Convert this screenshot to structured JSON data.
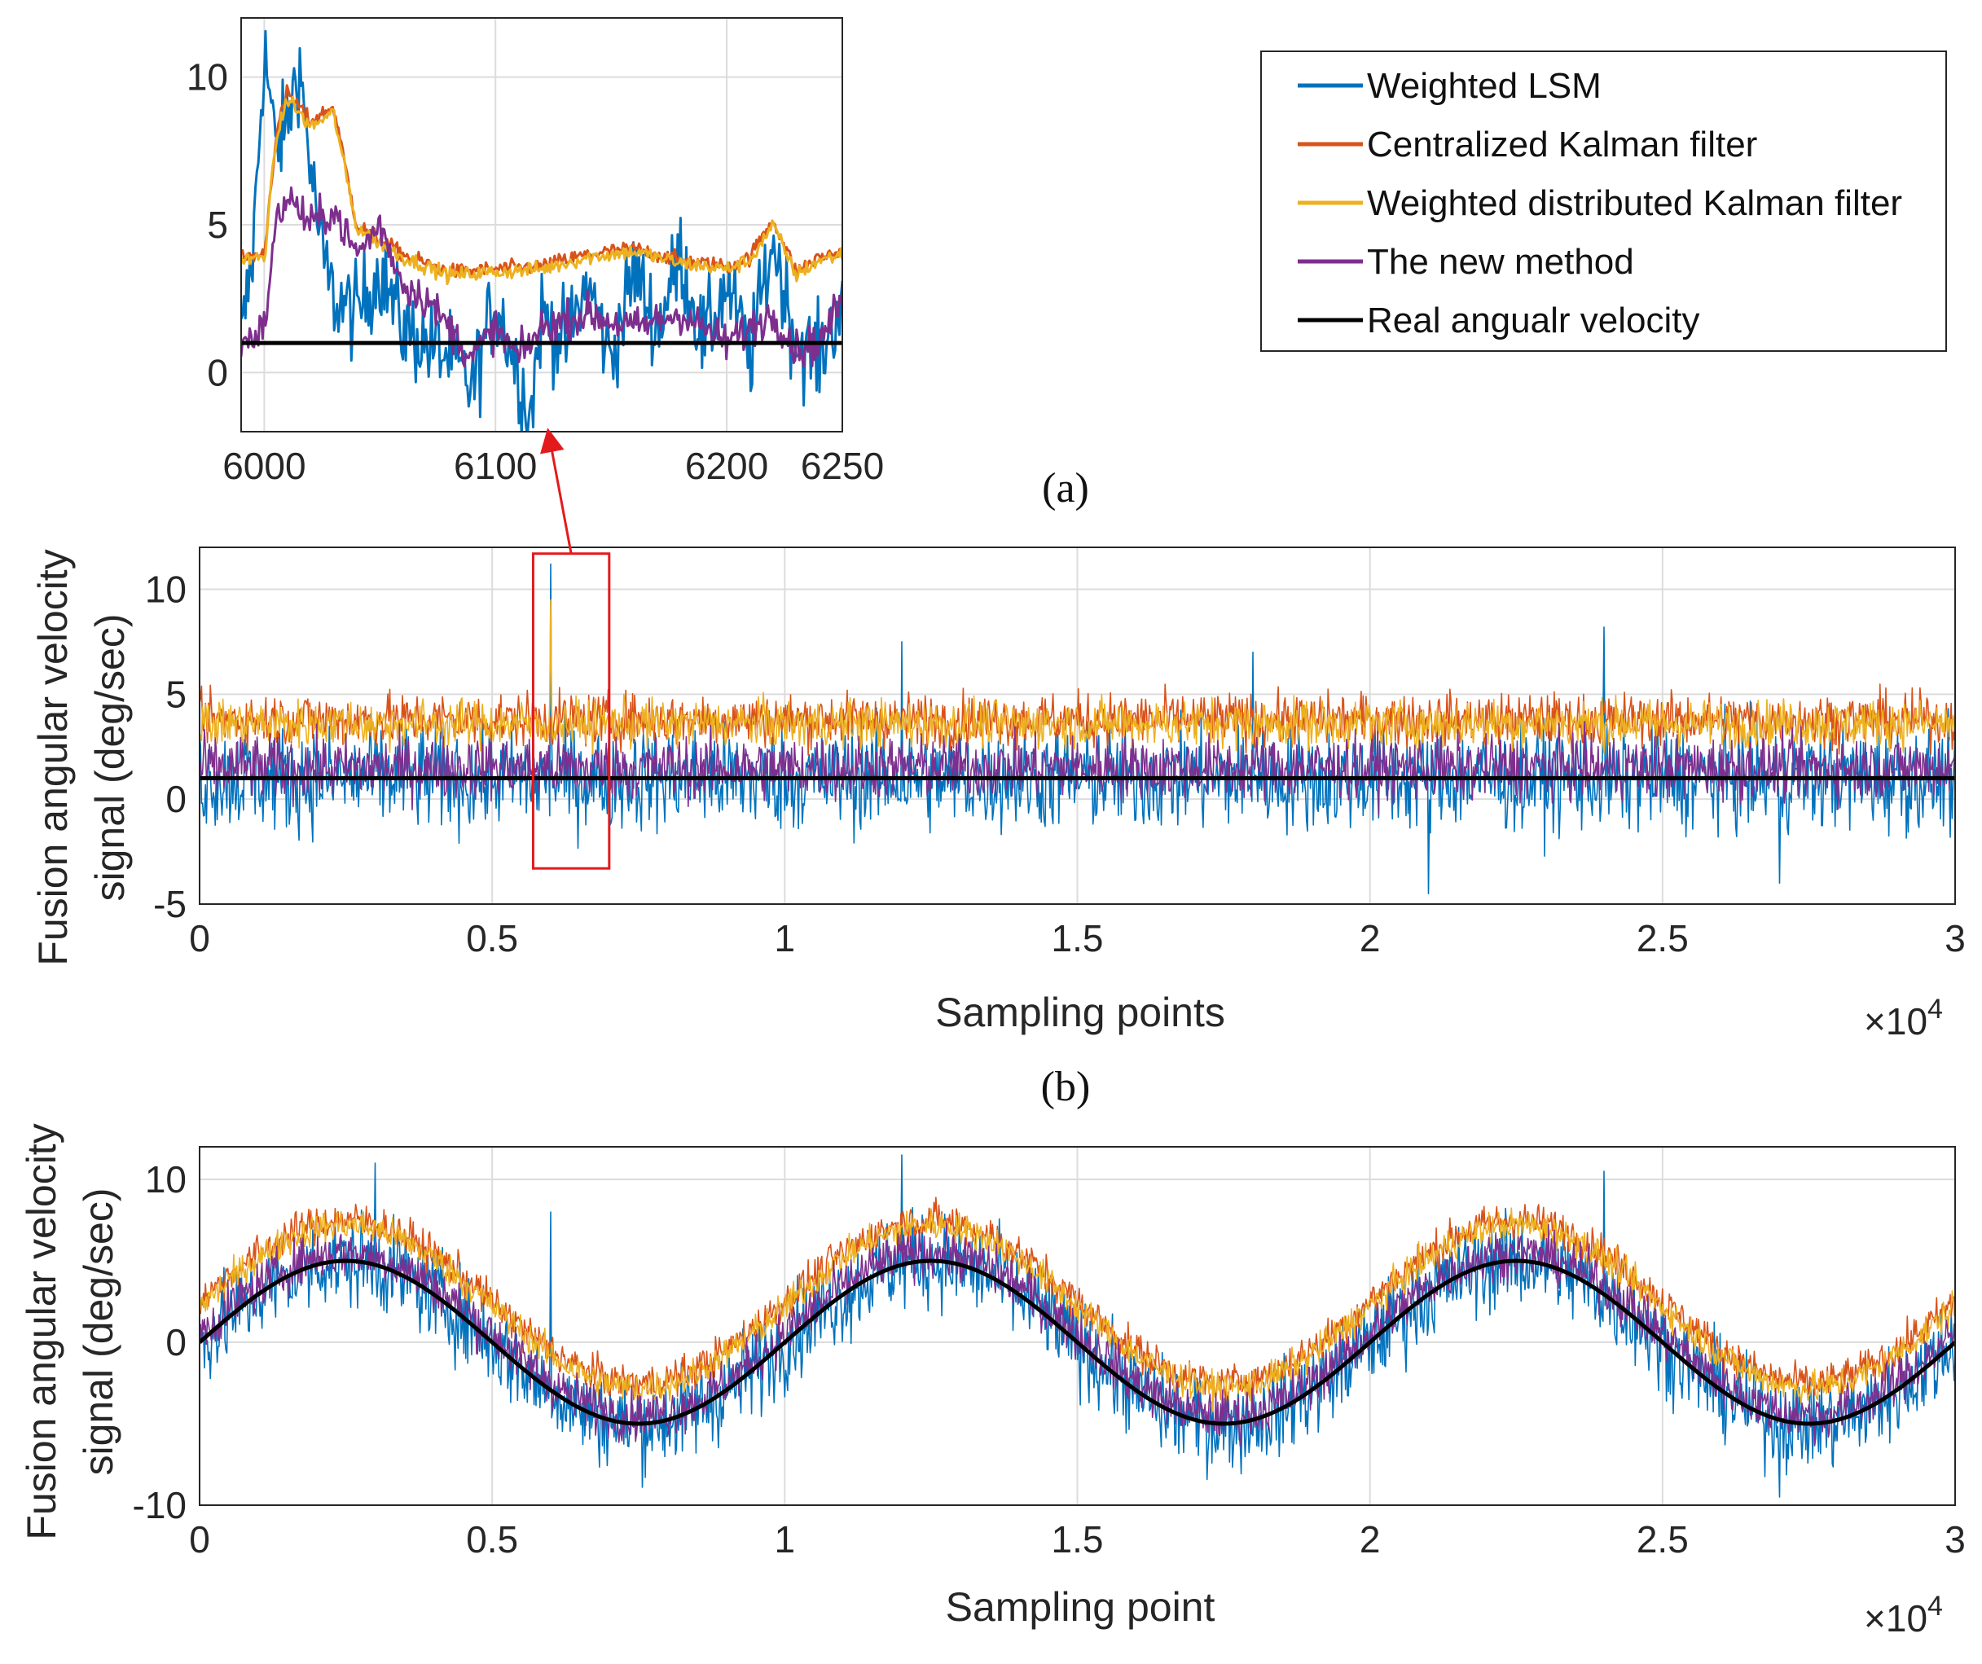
{
  "legend": {
    "entries": [
      {
        "name": "Weighted LSM",
        "color": "#0072BD"
      },
      {
        "name": "Centralized Kalman filter",
        "color": "#D95319"
      },
      {
        "name": "Weighted distributed Kalman filter",
        "color": "#EDB120"
      },
      {
        "name": "The new method",
        "color": "#7E2F8E"
      },
      {
        "name": "Real angualr velocity",
        "color": "#000000"
      }
    ]
  },
  "panel_a_label": "(a)",
  "panel_b_label": "(b)",
  "highlight_color": "#e31a1c",
  "chart_data": [
    {
      "id": "inset",
      "type": "line",
      "title": "",
      "xlabel": "",
      "ylabel": "",
      "xlim": [
        5990,
        6250
      ],
      "ylim": [
        -2,
        12
      ],
      "xticks": [
        6000,
        6100,
        6200,
        6250
      ],
      "xtick_labels": [
        "6000",
        "6100",
        "6200",
        "6250"
      ],
      "yticks": [
        0,
        5,
        10
      ],
      "ytick_labels": [
        "0",
        "5",
        "10"
      ],
      "grid": true,
      "description": "Zoomed view of panel (a) between sampling points 6000 and 6250",
      "series": [
        {
          "name": "Weighted LSM",
          "x": [
            5990,
            5995,
            6000,
            6005,
            6010,
            6015,
            6020,
            6025,
            6030,
            6040,
            6050,
            6060,
            6070,
            6080,
            6090,
            6100,
            6110,
            6115,
            6120,
            6130,
            6140,
            6150,
            6160,
            6170,
            6180,
            6190,
            6200,
            6210,
            6220,
            6230,
            6240,
            6250
          ],
          "y": [
            1.0,
            4.0,
            11.0,
            7.5,
            8.5,
            10.5,
            7.0,
            4.0,
            2.5,
            2.0,
            3.5,
            1.5,
            1.0,
            0.5,
            -0.5,
            2.5,
            0.0,
            -1.5,
            2.0,
            1.0,
            3.0,
            0.5,
            3.5,
            1.5,
            4.0,
            1.0,
            3.0,
            0.5,
            4.5,
            1.0,
            0.5,
            2.5
          ]
        },
        {
          "name": "Centralized Kalman filter",
          "x": [
            5990,
            6000,
            6005,
            6010,
            6020,
            6030,
            6040,
            6050,
            6060,
            6080,
            6100,
            6120,
            6140,
            6160,
            6180,
            6200,
            6210,
            6220,
            6230,
            6240,
            6250
          ],
          "y": [
            3.9,
            4.0,
            8.0,
            9.5,
            8.5,
            9.0,
            5.0,
            4.5,
            4.0,
            3.4,
            3.5,
            3.6,
            4.0,
            4.2,
            3.8,
            3.6,
            3.9,
            5.2,
            3.4,
            3.9,
            4.1
          ]
        },
        {
          "name": "Weighted distributed Kalman filter",
          "x": [
            5990,
            6000,
            6005,
            6010,
            6020,
            6030,
            6040,
            6050,
            6060,
            6080,
            6100,
            6120,
            6140,
            6160,
            6180,
            6200,
            6210,
            6220,
            6230,
            6240,
            6250
          ],
          "y": [
            3.8,
            3.9,
            7.8,
            9.3,
            8.3,
            8.8,
            4.9,
            4.4,
            3.9,
            3.3,
            3.4,
            3.5,
            3.9,
            4.1,
            3.7,
            3.5,
            3.8,
            5.0,
            3.3,
            3.8,
            4.0
          ]
        },
        {
          "name": "The new method",
          "x": [
            5990,
            6000,
            6005,
            6010,
            6020,
            6030,
            6040,
            6050,
            6060,
            6070,
            6080,
            6090,
            6100,
            6110,
            6120,
            6140,
            6160,
            6180,
            6200,
            6220,
            6230,
            6240,
            6250
          ],
          "y": [
            1.0,
            1.5,
            5.0,
            6.0,
            5.0,
            5.5,
            4.0,
            5.0,
            3.0,
            2.5,
            1.5,
            0.5,
            1.5,
            0.5,
            1.5,
            2.0,
            1.5,
            2.0,
            1.0,
            2.0,
            0.8,
            1.0,
            2.5
          ]
        },
        {
          "name": "Real angualr velocity",
          "x": [
            5990,
            6250
          ],
          "y": [
            1.0,
            1.0
          ]
        }
      ]
    },
    {
      "id": "a",
      "type": "line",
      "title": "(a)",
      "xlabel": "Sampling points",
      "ylabel": "Fusion angular velocity signal (deg/sec)",
      "x_multiplier_label": "×10",
      "x_multiplier_exponent": "4",
      "xlim": [
        0,
        3
      ],
      "ylim": [
        -5,
        12
      ],
      "xticks": [
        0,
        0.5,
        1,
        1.5,
        2,
        2.5,
        3
      ],
      "xtick_labels": [
        "0",
        "0.5",
        "1",
        "1.5",
        "2",
        "2.5",
        "3"
      ],
      "yticks": [
        -5,
        0,
        5,
        10
      ],
      "ytick_labels": [
        "-5",
        "0",
        "5",
        "10"
      ],
      "grid": true,
      "highlight_box": {
        "x": [
          0.57,
          0.7
        ],
        "y": [
          -3.3,
          11.7
        ]
      },
      "series": [
        {
          "name": "Weighted LSM",
          "kind": "constant-noise",
          "center": 1.0,
          "amplitude": 2.0,
          "spikes": [
            [
              0.6,
              11.2
            ],
            [
              1.2,
              7.5
            ],
            [
              1.8,
              7.0
            ],
            [
              2.4,
              8.2
            ],
            [
              2.1,
              -4.5
            ],
            [
              2.7,
              -4.0
            ]
          ]
        },
        {
          "name": "Centralized Kalman filter",
          "kind": "constant-noise",
          "center": 3.8,
          "amplitude": 1.0
        },
        {
          "name": "Weighted distributed Kalman filter",
          "kind": "constant-noise",
          "center": 3.6,
          "amplitude": 0.9,
          "spikes": [
            [
              0.6,
              9.5
            ]
          ]
        },
        {
          "name": "The new method",
          "kind": "constant-noise",
          "center": 1.5,
          "amplitude": 1.2
        },
        {
          "name": "Real angualr velocity",
          "kind": "constant",
          "value": 1.0
        }
      ]
    },
    {
      "id": "b",
      "type": "line",
      "title": "(b)",
      "xlabel": "Sampling point",
      "ylabel": "Fusion angular velocity signal (deg/sec)",
      "x_multiplier_label": "×10",
      "x_multiplier_exponent": "4",
      "xlim": [
        0,
        3
      ],
      "ylim": [
        -10,
        12
      ],
      "xticks": [
        0,
        0.5,
        1,
        1.5,
        2,
        2.5,
        3
      ],
      "xtick_labels": [
        "0",
        "0.5",
        "1",
        "1.5",
        "2",
        "2.5",
        "3"
      ],
      "yticks": [
        -10,
        0,
        10
      ],
      "ytick_labels": [
        "-10",
        "0",
        "10"
      ],
      "grid": true,
      "signal": {
        "amplitude": 5,
        "period": 1.0
      },
      "series": [
        {
          "name": "Weighted LSM",
          "kind": "sine-noise",
          "offset": 0.0,
          "amplitude": 2.3,
          "spikes": [
            [
              0.3,
              11.0
            ],
            [
              0.6,
              8.0
            ],
            [
              1.2,
              11.5
            ],
            [
              2.4,
              10.5
            ],
            [
              2.7,
              -9.5
            ]
          ]
        },
        {
          "name": "Centralized Kalman filter",
          "kind": "sine-noise",
          "offset": 2.5,
          "amplitude": 0.9
        },
        {
          "name": "Weighted distributed Kalman filter",
          "kind": "sine-noise",
          "offset": 2.2,
          "amplitude": 0.8
        },
        {
          "name": "The new method",
          "kind": "sine-noise",
          "offset": 0.5,
          "amplitude": 1.2
        },
        {
          "name": "Real angualr velocity",
          "kind": "sine",
          "offset": 0.0
        }
      ]
    }
  ]
}
